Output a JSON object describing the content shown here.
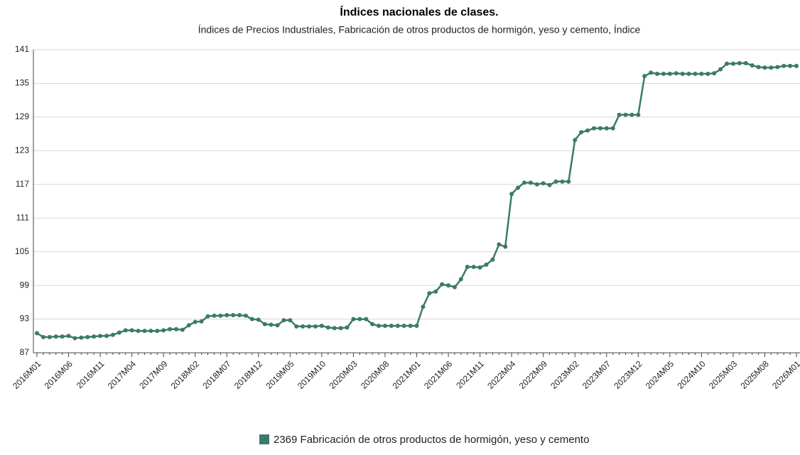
{
  "chart_data": {
    "type": "line",
    "title": "Índices nacionales de clases.",
    "subtitle": "Índices de Precios Industriales, Fabricación de otros productos de hormigón, yeso y cemento, Índice",
    "categories": [
      "2016M01",
      null,
      null,
      null,
      null,
      "2016M06",
      null,
      null,
      null,
      null,
      "2016M11",
      null,
      null,
      null,
      null,
      "2017M04",
      null,
      null,
      null,
      null,
      "2017M09",
      null,
      null,
      null,
      null,
      "2018M02",
      null,
      null,
      null,
      null,
      "2018M07",
      null,
      null,
      null,
      null,
      "2018M12",
      null,
      null,
      null,
      null,
      "2019M05",
      null,
      null,
      null,
      null,
      "2019M10",
      null,
      null,
      null,
      null,
      "2020M03",
      null,
      null,
      null,
      null,
      "2020M08",
      null,
      null,
      null,
      null,
      "2021M01",
      null,
      null,
      null,
      null,
      "2021M06",
      null,
      null,
      null,
      null,
      "2021M11",
      null,
      null,
      null,
      null,
      "2022M04",
      null,
      null,
      null,
      null,
      "2022M09",
      null,
      null,
      null,
      null,
      "2023M02",
      null,
      null,
      null,
      null,
      "2023M07",
      null,
      null,
      null,
      null,
      "2023M12",
      null,
      null,
      null,
      null,
      "2024M05",
      null,
      null,
      null,
      null,
      "2024M10",
      null,
      null,
      null,
      null,
      "2025M03",
      null,
      null,
      null,
      null,
      "2025M08",
      null,
      null,
      null,
      null,
      "2026M01"
    ],
    "series": [
      {
        "name": "2369 Fabricación de otros productos de hormigón, yeso y cemento",
        "color": "#3b7a6a",
        "values": [
          90.5,
          89.8,
          89.8,
          89.9,
          89.9,
          90.0,
          89.6,
          89.7,
          89.8,
          89.9,
          90.0,
          90.0,
          90.2,
          90.6,
          91.0,
          91.0,
          90.9,
          90.9,
          90.9,
          90.9,
          91.0,
          91.2,
          91.2,
          91.1,
          91.9,
          92.5,
          92.6,
          93.5,
          93.6,
          93.6,
          93.7,
          93.7,
          93.7,
          93.6,
          93.0,
          92.9,
          92.1,
          92.0,
          91.9,
          92.8,
          92.8,
          91.7,
          91.7,
          91.7,
          91.7,
          91.8,
          91.5,
          91.4,
          91.4,
          91.5,
          93.0,
          93.0,
          93.0,
          92.1,
          91.8,
          91.8,
          91.8,
          91.8,
          91.8,
          91.8,
          91.8,
          95.2,
          97.6,
          97.9,
          99.2,
          99.0,
          98.7,
          100.1,
          102.3,
          102.3,
          102.2,
          102.7,
          103.6,
          106.3,
          105.9,
          115.3,
          116.4,
          117.3,
          117.3,
          117.0,
          117.2,
          116.9,
          117.5,
          117.5,
          117.5,
          124.9,
          126.3,
          126.6,
          127.0,
          127.0,
          127.0,
          127.0,
          129.4,
          129.4,
          129.4,
          129.4,
          136.3,
          136.9,
          136.7,
          136.7,
          136.7,
          136.8,
          136.7,
          136.7,
          136.7,
          136.7,
          136.7,
          136.8,
          137.5,
          138.5,
          138.5,
          138.6,
          138.6,
          138.2,
          137.9,
          137.8,
          137.8,
          137.9,
          138.1,
          138.1,
          138.1
        ]
      }
    ],
    "ylim": [
      87,
      141
    ],
    "yticks": [
      87,
      93,
      99,
      105,
      111,
      117,
      123,
      129,
      135,
      141
    ],
    "grid": true
  }
}
